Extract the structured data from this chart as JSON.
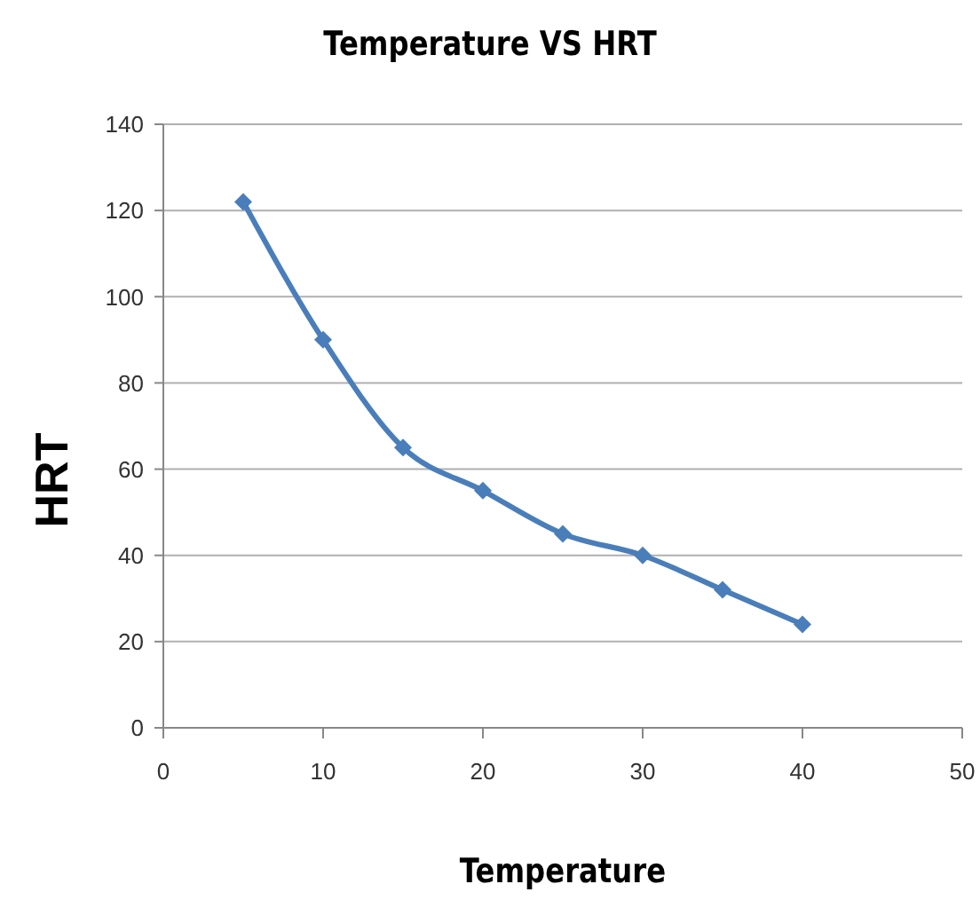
{
  "chart_data": {
    "type": "line",
    "title": "Temperature  VS  HRT",
    "xlabel": "Temperature",
    "ylabel": "HRT",
    "x": [
      5,
      10,
      15,
      20,
      25,
      30,
      35,
      40
    ],
    "series": [
      {
        "color": "#4a7ebb",
        "values": [
          122,
          90,
          65,
          55,
          45,
          40,
          32,
          24
        ]
      }
    ],
    "xlim": [
      0,
      50
    ],
    "xticks": [
      0,
      10,
      20,
      30,
      40,
      50
    ],
    "ylim": [
      0,
      140
    ],
    "yticks": [
      0,
      20,
      40,
      60,
      80,
      100,
      120,
      140
    ],
    "grid": "y",
    "marker": "diamond",
    "legend": false
  }
}
